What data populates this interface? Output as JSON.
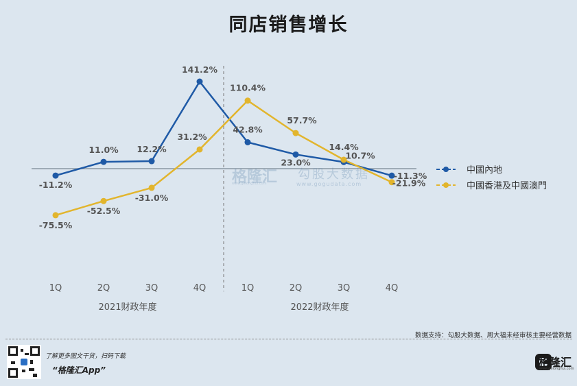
{
  "chart_data": {
    "type": "line",
    "title": "同店销售增长",
    "categories": [
      "1Q",
      "2Q",
      "3Q",
      "4Q",
      "1Q",
      "2Q",
      "3Q",
      "4Q"
    ],
    "fiscal_years": [
      "2021财政年度",
      "2022财政年度"
    ],
    "series": [
      {
        "name": "中國內地",
        "color": "#1f5aa6",
        "values": [
          -11.2,
          11.0,
          12.2,
          141.2,
          42.8,
          23.0,
          10.7,
          -11.3
        ],
        "labels": [
          "-11.2%",
          "11.0%",
          "12.2%",
          "141.2%",
          "42.8%",
          "23.0%",
          "10.7%",
          "-11.3%"
        ]
      },
      {
        "name": "中國香港及中國澳門",
        "color": "#e2b52d",
        "values": [
          -75.5,
          -52.5,
          -31.0,
          31.2,
          110.4,
          57.7,
          14.4,
          -21.9
        ],
        "labels": [
          "-75.5%",
          "-52.5%",
          "-31.0%",
          "31.2%",
          "110.4%",
          "57.7%",
          "14.4%",
          "-21.9%"
        ]
      }
    ],
    "ylim": [
      -170,
      160
    ],
    "legend_position": "right",
    "divider_between": [
      "4Q",
      "1Q"
    ]
  },
  "footer": {
    "source": "数据支持：勾股大数据、周大福未经审核主要经营数据",
    "promo_line": "了解更多图文干货，扫码下载",
    "promo_app": "“格隆汇App”",
    "brand_name": "格隆汇",
    "brand_url": "www.gelonghui.com"
  },
  "watermark": {
    "name": "格隆汇",
    "name_url": "www.gelonghui.com",
    "sub": "勾股大数据",
    "sub_url": "www.gogudata.com"
  }
}
